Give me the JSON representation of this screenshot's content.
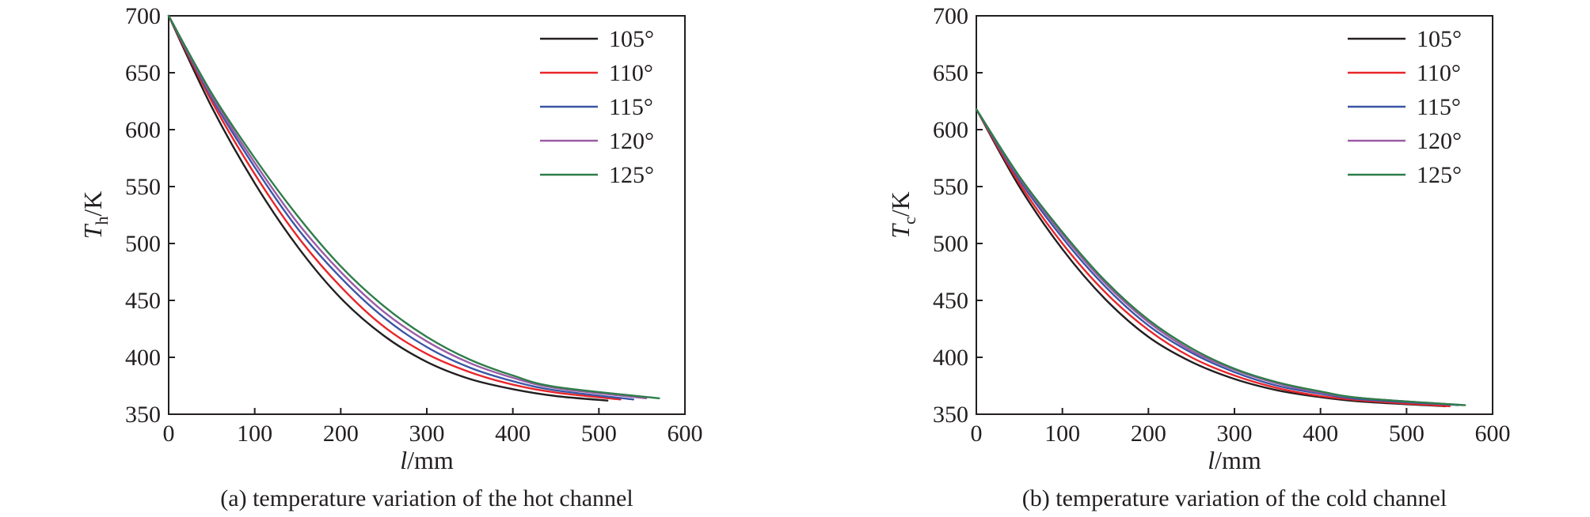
{
  "chart_data": [
    {
      "id": "hot",
      "type": "line",
      "caption": "(a) temperature variation of the hot channel",
      "xlabel_var": "l",
      "xlabel_unit": "/mm",
      "ylabel_var": "T",
      "ylabel_sub": "h",
      "ylabel_unit": "/K",
      "xlim": [
        0,
        600
      ],
      "ylim": [
        350,
        700
      ],
      "xticks": [
        0,
        100,
        200,
        300,
        400,
        500,
        600
      ],
      "yticks": [
        350,
        400,
        450,
        500,
        550,
        600,
        650,
        700
      ],
      "grid": false,
      "legend_position": "top-right",
      "series": [
        {
          "name": "105°",
          "color": "#231f20",
          "x": [
            0,
            50,
            100,
            150,
            200,
            250,
            300,
            350,
            400,
            450,
            510
          ],
          "y": [
            700,
            620,
            553,
            497,
            452,
            419,
            396,
            381,
            372,
            366,
            362
          ]
        },
        {
          "name": "110°",
          "color": "#e8262b",
          "x": [
            0,
            50,
            100,
            150,
            200,
            250,
            300,
            350,
            400,
            450,
            525
          ],
          "y": [
            700,
            625,
            561,
            506,
            462,
            427,
            403,
            387,
            376,
            369,
            363
          ]
        },
        {
          "name": "115°",
          "color": "#3a56a5",
          "x": [
            0,
            50,
            100,
            150,
            200,
            250,
            300,
            350,
            400,
            450,
            540
          ],
          "y": [
            700,
            628,
            567,
            513,
            470,
            435,
            409,
            391,
            379,
            371,
            363
          ]
        },
        {
          "name": "120°",
          "color": "#9b5ba5",
          "x": [
            0,
            50,
            100,
            150,
            200,
            250,
            300,
            350,
            400,
            450,
            555
          ],
          "y": [
            700,
            630,
            571,
            518,
            475,
            440,
            414,
            395,
            382,
            373,
            364
          ]
        },
        {
          "name": "125°",
          "color": "#2e7d4a",
          "x": [
            0,
            50,
            100,
            150,
            200,
            250,
            300,
            350,
            400,
            450,
            570
          ],
          "y": [
            700,
            632,
            575,
            524,
            480,
            445,
            418,
            398,
            384,
            374,
            364
          ]
        }
      ]
    },
    {
      "id": "cold",
      "type": "line",
      "caption": "(b) temperature variation of the cold channel",
      "xlabel_var": "l",
      "xlabel_unit": "/mm",
      "ylabel_var": "T",
      "ylabel_sub": "c",
      "ylabel_unit": "/K",
      "xlim": [
        0,
        600
      ],
      "ylim": [
        350,
        700
      ],
      "xticks": [
        0,
        100,
        200,
        300,
        400,
        500,
        600
      ],
      "yticks": [
        350,
        400,
        450,
        500,
        550,
        600,
        650,
        700
      ],
      "grid": false,
      "legend_position": "top-right",
      "series": [
        {
          "name": "105°",
          "color": "#231f20",
          "x": [
            0,
            50,
            100,
            150,
            200,
            250,
            300,
            350,
            400,
            450,
            545
          ],
          "y": [
            618,
            550,
            495,
            451,
            418,
            396,
            381,
            371,
            365,
            361,
            357
          ]
        },
        {
          "name": "110°",
          "color": "#e8262b",
          "x": [
            0,
            50,
            100,
            150,
            200,
            250,
            300,
            350,
            400,
            450,
            550
          ],
          "y": [
            618,
            553,
            500,
            457,
            424,
            400,
            384,
            373,
            366,
            362,
            357
          ]
        },
        {
          "name": "115°",
          "color": "#3a56a5",
          "x": [
            0,
            50,
            100,
            150,
            200,
            250,
            300,
            350,
            400,
            450,
            560
          ],
          "y": [
            618,
            556,
            505,
            462,
            428,
            404,
            387,
            375,
            368,
            363,
            358
          ]
        },
        {
          "name": "120°",
          "color": "#9b5ba5",
          "x": [
            0,
            50,
            100,
            150,
            200,
            250,
            300,
            350,
            400,
            450,
            565
          ],
          "y": [
            618,
            558,
            508,
            465,
            431,
            406,
            389,
            377,
            369,
            364,
            358
          ]
        },
        {
          "name": "125°",
          "color": "#2e7d4a",
          "x": [
            0,
            50,
            100,
            150,
            200,
            250,
            300,
            350,
            400,
            450,
            568
          ],
          "y": [
            618,
            559,
            510,
            467,
            433,
            408,
            390,
            378,
            370,
            364,
            358
          ]
        }
      ]
    }
  ]
}
